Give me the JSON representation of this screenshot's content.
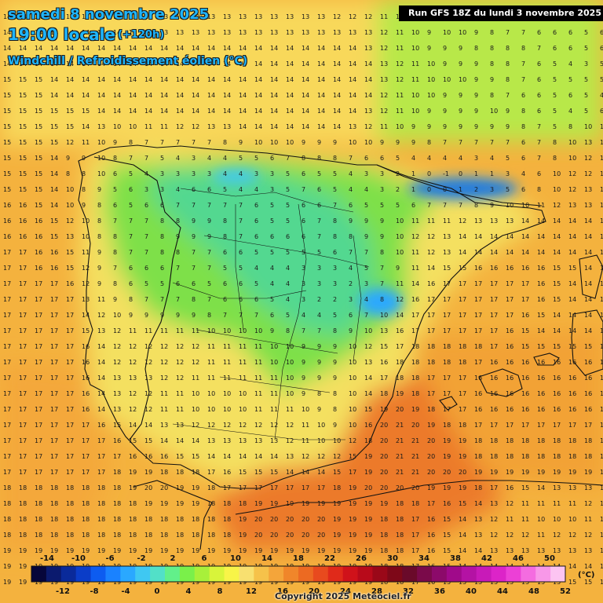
{
  "header": {
    "date": "samedi 8 novembre 2025",
    "time": "19:00 locale",
    "lead": "(+120h)",
    "parameter": "Windchill / Refroidissement éolien (°C)",
    "run": "Run GFS 18Z du lundi 3 novembre 2025"
  },
  "footer": {
    "copyright": "Copyright 2025 Meteociel.fr"
  },
  "legend": {
    "unit": "(°C)",
    "top_ticks": [
      "-14",
      "-10",
      "-6",
      "-2",
      "2",
      "6",
      "10",
      "14",
      "18",
      "22",
      "26",
      "30",
      "34",
      "38",
      "42",
      "46",
      "50"
    ],
    "bottom_ticks": [
      "-12",
      "-8",
      "-4",
      "0",
      "4",
      "8",
      "12",
      "16",
      "20",
      "24",
      "28",
      "32",
      "36",
      "40",
      "44",
      "48",
      "52"
    ],
    "colors": [
      "#06063a",
      "#0b1a6e",
      "#0a2a9a",
      "#0b3dc8",
      "#0d5cf0",
      "#1a82ff",
      "#2aa8ff",
      "#3fc8f2",
      "#52e0c8",
      "#62f08a",
      "#7af04a",
      "#a8f03a",
      "#d8f43a",
      "#f8f448",
      "#f8e070",
      "#f6c24a",
      "#f4a53a",
      "#f0862a",
      "#ec6a22",
      "#e84a1e",
      "#e02a1a",
      "#d0121a",
      "#b80a1a",
      "#9a0818",
      "#7e0818",
      "#6a0a2a",
      "#7a0a4a",
      "#8c0a6a",
      "#a00a8a",
      "#b412a4",
      "#c81ab8",
      "#dc24c8",
      "#ec40d6",
      "#f46ce0",
      "#f898e8",
      "#fcc4f2"
    ]
  },
  "map_colors": {
    "sea_warm": "#f4b23e",
    "sea_cool": "#f8d85a",
    "land": "#f0d050",
    "cold": "#8ae04a",
    "colder": "#52d890",
    "coldest": "#1a7ae0",
    "hot": "#e8702a"
  },
  "grid_values": [
    [
      14,
      14,
      14,
      14,
      14,
      14,
      13,
      13,
      13,
      13,
      13,
      13,
      13,
      13,
      13,
      13,
      13,
      13,
      13,
      13,
      13,
      12,
      12,
      12,
      11,
      10,
      9,
      9,
      10,
      10,
      8,
      7,
      6,
      5,
      7,
      6,
      7,
      7,
      6
    ],
    [
      14,
      14,
      14,
      14,
      14,
      14,
      14,
      14,
      13,
      13,
      13,
      13,
      13,
      13,
      13,
      13,
      13,
      13,
      13,
      13,
      13,
      13,
      13,
      13,
      12,
      11,
      10,
      9,
      10,
      10,
      9,
      8,
      7,
      7,
      6,
      6,
      6,
      5,
      6
    ],
    [
      14,
      14,
      14,
      14,
      14,
      14,
      14,
      14,
      14,
      14,
      14,
      14,
      14,
      14,
      14,
      14,
      14,
      14,
      14,
      14,
      14,
      14,
      14,
      13,
      12,
      11,
      10,
      9,
      9,
      9,
      8,
      8,
      8,
      8,
      7,
      6,
      6,
      5,
      6
    ],
    [
      14,
      14,
      14,
      14,
      14,
      14,
      14,
      14,
      14,
      14,
      14,
      14,
      14,
      14,
      14,
      14,
      14,
      14,
      14,
      14,
      14,
      14,
      14,
      14,
      13,
      12,
      11,
      10,
      9,
      9,
      9,
      8,
      8,
      7,
      6,
      5,
      4,
      3,
      5
    ],
    [
      15,
      15,
      15,
      14,
      14,
      14,
      14,
      14,
      14,
      14,
      14,
      14,
      14,
      14,
      14,
      14,
      14,
      14,
      14,
      14,
      14,
      14,
      14,
      14,
      13,
      12,
      11,
      10,
      10,
      10,
      9,
      9,
      8,
      7,
      6,
      5,
      5,
      5,
      5
    ],
    [
      15,
      15,
      15,
      14,
      14,
      14,
      14,
      14,
      14,
      14,
      14,
      14,
      14,
      14,
      14,
      14,
      14,
      14,
      14,
      14,
      14,
      14,
      14,
      14,
      12,
      11,
      10,
      10,
      9,
      9,
      9,
      8,
      7,
      6,
      6,
      5,
      6,
      5,
      4
    ],
    [
      15,
      15,
      15,
      15,
      15,
      15,
      14,
      14,
      14,
      14,
      14,
      14,
      14,
      14,
      14,
      14,
      14,
      14,
      14,
      14,
      14,
      14,
      14,
      13,
      12,
      11,
      10,
      9,
      9,
      9,
      9,
      10,
      9,
      8,
      6,
      5,
      4,
      5,
      6
    ],
    [
      15,
      15,
      15,
      15,
      15,
      14,
      13,
      10,
      10,
      11,
      11,
      12,
      12,
      13,
      13,
      14,
      14,
      14,
      14,
      14,
      14,
      14,
      13,
      12,
      11,
      10,
      9,
      9,
      9,
      9,
      9,
      9,
      9,
      8,
      7,
      5,
      8,
      10,
      13
    ],
    [
      15,
      15,
      15,
      15,
      12,
      11,
      10,
      9,
      8,
      7,
      7,
      7,
      7,
      7,
      8,
      9,
      10,
      10,
      10,
      9,
      9,
      9,
      10,
      10,
      9,
      9,
      9,
      8,
      7,
      7,
      7,
      7,
      7,
      6,
      7,
      8,
      10,
      13,
      13
    ],
    [
      15,
      15,
      15,
      14,
      9,
      9,
      10,
      8,
      7,
      7,
      5,
      4,
      3,
      4,
      4,
      5,
      5,
      6,
      7,
      8,
      8,
      8,
      7,
      6,
      6,
      5,
      4,
      4,
      4,
      4,
      3,
      4,
      5,
      6,
      7,
      8,
      10,
      12,
      13
    ],
    [
      15,
      15,
      15,
      14,
      8,
      8,
      10,
      6,
      5,
      4,
      3,
      3,
      3,
      3,
      4,
      4,
      3,
      3,
      5,
      6,
      5,
      5,
      4,
      3,
      3,
      2,
      1,
      0,
      -1,
      0,
      1,
      1,
      3,
      4,
      6,
      10,
      12,
      12,
      13
    ],
    [
      15,
      15,
      15,
      14,
      10,
      8,
      9,
      5,
      6,
      3,
      3,
      4,
      6,
      6,
      5,
      4,
      4,
      3,
      5,
      7,
      6,
      5,
      4,
      4,
      3,
      2,
      1,
      0,
      0,
      1,
      2,
      3,
      5,
      6,
      8,
      10,
      12,
      13,
      13
    ],
    [
      16,
      16,
      15,
      14,
      10,
      9,
      8,
      6,
      5,
      6,
      6,
      7,
      7,
      7,
      7,
      7,
      6,
      5,
      5,
      6,
      6,
      7,
      6,
      5,
      5,
      5,
      6,
      7,
      7,
      7,
      8,
      9,
      10,
      10,
      11,
      12,
      13,
      13,
      13
    ],
    [
      16,
      16,
      16,
      15,
      12,
      10,
      8,
      7,
      7,
      7,
      8,
      8,
      9,
      9,
      8,
      7,
      6,
      5,
      5,
      6,
      7,
      8,
      9,
      9,
      9,
      10,
      11,
      11,
      11,
      12,
      13,
      13,
      13,
      14,
      14,
      14,
      14,
      14,
      14
    ],
    [
      16,
      16,
      16,
      15,
      13,
      10,
      8,
      8,
      7,
      7,
      8,
      9,
      9,
      9,
      8,
      7,
      6,
      6,
      6,
      6,
      7,
      8,
      8,
      9,
      9,
      10,
      12,
      12,
      13,
      14,
      14,
      14,
      14,
      14,
      14,
      14,
      14,
      14,
      14
    ],
    [
      17,
      17,
      16,
      16,
      15,
      11,
      9,
      8,
      7,
      7,
      8,
      8,
      7,
      7,
      6,
      6,
      5,
      5,
      5,
      5,
      5,
      6,
      7,
      7,
      8,
      10,
      11,
      12,
      13,
      14,
      14,
      14,
      14,
      14,
      14,
      14,
      14,
      14,
      14
    ],
    [
      17,
      17,
      16,
      16,
      15,
      12,
      9,
      7,
      6,
      6,
      6,
      7,
      7,
      7,
      5,
      5,
      4,
      4,
      4,
      3,
      3,
      3,
      4,
      5,
      7,
      9,
      11,
      14,
      15,
      15,
      16,
      16,
      16,
      16,
      16,
      15,
      15,
      14,
      14
    ],
    [
      17,
      17,
      17,
      17,
      16,
      12,
      9,
      8,
      6,
      5,
      5,
      6,
      6,
      5,
      6,
      6,
      5,
      4,
      4,
      3,
      3,
      3,
      2,
      3,
      7,
      11,
      14,
      16,
      17,
      17,
      17,
      17,
      17,
      17,
      16,
      15,
      14,
      14,
      14
    ],
    [
      17,
      17,
      17,
      17,
      17,
      13,
      11,
      9,
      8,
      7,
      7,
      7,
      8,
      7,
      6,
      6,
      6,
      5,
      4,
      3,
      2,
      2,
      3,
      4,
      8,
      12,
      16,
      17,
      17,
      17,
      17,
      17,
      17,
      17,
      16,
      15,
      14,
      14,
      14
    ],
    [
      17,
      17,
      17,
      17,
      17,
      14,
      12,
      10,
      9,
      9,
      9,
      9,
      9,
      8,
      7,
      7,
      7,
      6,
      5,
      4,
      4,
      5,
      6,
      7,
      10,
      14,
      17,
      17,
      17,
      17,
      17,
      17,
      17,
      16,
      15,
      14,
      14,
      14,
      14
    ],
    [
      17,
      17,
      17,
      17,
      17,
      15,
      13,
      12,
      11,
      11,
      11,
      11,
      11,
      10,
      10,
      10,
      10,
      9,
      8,
      7,
      7,
      8,
      9,
      10,
      13,
      16,
      17,
      17,
      17,
      17,
      17,
      17,
      16,
      15,
      14,
      14,
      14,
      14,
      14
    ],
    [
      17,
      17,
      17,
      17,
      17,
      16,
      14,
      12,
      12,
      12,
      12,
      12,
      12,
      11,
      11,
      11,
      11,
      10,
      10,
      9,
      9,
      9,
      10,
      12,
      15,
      17,
      18,
      18,
      18,
      18,
      18,
      17,
      16,
      15,
      15,
      15,
      15,
      15,
      15
    ],
    [
      17,
      17,
      17,
      17,
      17,
      16,
      14,
      12,
      12,
      12,
      12,
      12,
      12,
      11,
      11,
      11,
      11,
      10,
      10,
      9,
      9,
      9,
      10,
      13,
      16,
      18,
      18,
      18,
      18,
      18,
      17,
      16,
      16,
      16,
      16,
      16,
      16,
      16,
      16
    ],
    [
      17,
      17,
      17,
      17,
      17,
      16,
      14,
      13,
      13,
      13,
      12,
      12,
      11,
      11,
      11,
      11,
      11,
      11,
      10,
      9,
      9,
      9,
      10,
      14,
      17,
      18,
      18,
      17,
      17,
      17,
      16,
      16,
      16,
      16,
      16,
      16,
      16,
      16,
      16
    ],
    [
      17,
      17,
      17,
      17,
      17,
      16,
      14,
      13,
      12,
      12,
      11,
      11,
      10,
      10,
      10,
      10,
      11,
      11,
      10,
      9,
      8,
      8,
      10,
      14,
      18,
      19,
      18,
      17,
      17,
      17,
      16,
      16,
      16,
      16,
      16,
      16,
      16,
      16,
      16
    ],
    [
      17,
      17,
      17,
      17,
      17,
      16,
      14,
      13,
      12,
      12,
      11,
      11,
      10,
      10,
      10,
      10,
      11,
      11,
      11,
      10,
      9,
      8,
      10,
      15,
      19,
      20,
      19,
      18,
      17,
      17,
      16,
      16,
      16,
      16,
      16,
      16,
      16,
      16,
      16
    ],
    [
      17,
      17,
      17,
      17,
      17,
      17,
      16,
      15,
      14,
      14,
      13,
      13,
      12,
      12,
      12,
      12,
      12,
      12,
      12,
      11,
      10,
      9,
      10,
      16,
      20,
      21,
      20,
      19,
      18,
      18,
      17,
      17,
      17,
      17,
      17,
      17,
      17,
      17,
      17
    ],
    [
      17,
      17,
      17,
      17,
      17,
      17,
      17,
      16,
      15,
      15,
      14,
      14,
      14,
      13,
      13,
      13,
      13,
      13,
      12,
      11,
      10,
      10,
      12,
      18,
      20,
      21,
      21,
      20,
      19,
      19,
      18,
      18,
      18,
      18,
      18,
      18,
      18,
      18,
      18
    ],
    [
      17,
      17,
      17,
      17,
      17,
      17,
      17,
      17,
      16,
      16,
      16,
      15,
      15,
      14,
      14,
      14,
      14,
      14,
      13,
      12,
      12,
      12,
      15,
      19,
      20,
      21,
      21,
      20,
      19,
      19,
      18,
      18,
      18,
      18,
      18,
      18,
      18,
      18,
      18
    ],
    [
      17,
      17,
      17,
      17,
      17,
      17,
      17,
      18,
      19,
      19,
      18,
      18,
      18,
      17,
      16,
      15,
      15,
      15,
      14,
      14,
      14,
      15,
      17,
      19,
      20,
      21,
      21,
      20,
      20,
      20,
      19,
      19,
      19,
      19,
      19,
      19,
      19,
      19,
      19
    ],
    [
      18,
      18,
      18,
      18,
      18,
      18,
      18,
      18,
      19,
      20,
      20,
      19,
      19,
      18,
      17,
      17,
      17,
      17,
      17,
      17,
      17,
      18,
      19,
      20,
      20,
      20,
      20,
      19,
      19,
      19,
      18,
      17,
      16,
      15,
      14,
      13,
      13,
      13,
      13
    ],
    [
      18,
      18,
      18,
      18,
      18,
      18,
      18,
      18,
      18,
      19,
      19,
      19,
      19,
      18,
      18,
      18,
      19,
      19,
      19,
      19,
      19,
      19,
      19,
      19,
      19,
      18,
      18,
      17,
      16,
      15,
      14,
      13,
      12,
      11,
      11,
      11,
      11,
      12,
      12
    ],
    [
      18,
      18,
      18,
      18,
      18,
      18,
      18,
      18,
      18,
      18,
      18,
      18,
      18,
      18,
      18,
      19,
      20,
      20,
      20,
      20,
      20,
      19,
      19,
      19,
      18,
      18,
      17,
      16,
      15,
      14,
      13,
      12,
      11,
      11,
      10,
      10,
      10,
      11,
      11
    ],
    [
      18,
      18,
      18,
      18,
      18,
      18,
      18,
      18,
      18,
      18,
      18,
      18,
      18,
      18,
      18,
      19,
      20,
      20,
      20,
      20,
      20,
      19,
      19,
      19,
      18,
      18,
      17,
      16,
      15,
      14,
      13,
      12,
      12,
      12,
      11,
      12,
      12,
      12,
      12
    ],
    [
      19,
      19,
      19,
      19,
      19,
      19,
      19,
      19,
      19,
      19,
      19,
      19,
      19,
      19,
      19,
      19,
      19,
      19,
      19,
      19,
      19,
      19,
      19,
      19,
      18,
      18,
      17,
      16,
      15,
      14,
      14,
      13,
      13,
      13,
      13,
      13,
      13,
      13,
      13
    ],
    [
      19,
      19,
      19,
      19,
      19,
      19,
      19,
      19,
      19,
      19,
      19,
      19,
      19,
      19,
      19,
      19,
      19,
      19,
      19,
      19,
      19,
      19,
      19,
      19,
      18,
      18,
      17,
      16,
      15,
      14,
      14,
      14,
      14,
      14,
      14,
      14,
      14,
      14,
      14
    ],
    [
      19,
      19,
      19,
      19,
      19,
      19,
      19,
      19,
      19,
      19,
      19,
      19,
      19,
      19,
      19,
      19,
      19,
      19,
      19,
      19,
      19,
      19,
      19,
      19,
      18,
      18,
      17,
      16,
      15,
      15,
      15,
      15,
      15,
      15,
      15,
      15,
      15,
      15,
      15
    ]
  ]
}
